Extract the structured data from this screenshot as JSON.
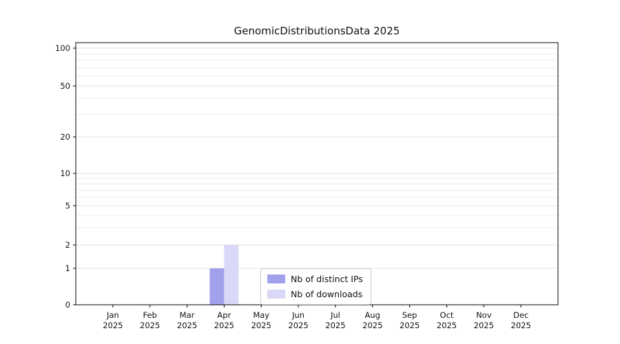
{
  "chart_data": {
    "type": "bar",
    "title": "GenomicDistributionsData 2025",
    "categories": [
      "Jan",
      "Feb",
      "Mar",
      "Apr",
      "May",
      "Jun",
      "Jul",
      "Aug",
      "Sep",
      "Oct",
      "Nov",
      "Dec"
    ],
    "year_label": "2025",
    "series": [
      {
        "name": "Nb of distinct IPs",
        "color": "#a2a2ec",
        "values": [
          0,
          0,
          0,
          1,
          0,
          0,
          0,
          0,
          0,
          0,
          0,
          0
        ]
      },
      {
        "name": "Nb of downloads",
        "color": "#d9d9f7",
        "values": [
          0,
          0,
          0,
          2,
          0,
          0,
          0,
          0,
          0,
          0,
          0,
          0
        ]
      }
    ],
    "yscale": "symlog",
    "yticks": [
      0,
      1,
      2,
      5,
      10,
      20,
      50,
      100
    ],
    "minor_yticks": [
      3,
      4,
      6,
      7,
      8,
      9,
      30,
      40,
      60,
      70,
      80,
      90
    ],
    "ylim": [
      0,
      120
    ],
    "grid": true,
    "legend_position": "lower center"
  },
  "colors": {
    "background": "#ffffff",
    "axis": "#000000",
    "text": "#111111",
    "grid_major": "#e0e0e0",
    "grid_minor": "#ececec",
    "legend_border": "#c9c9c9"
  }
}
